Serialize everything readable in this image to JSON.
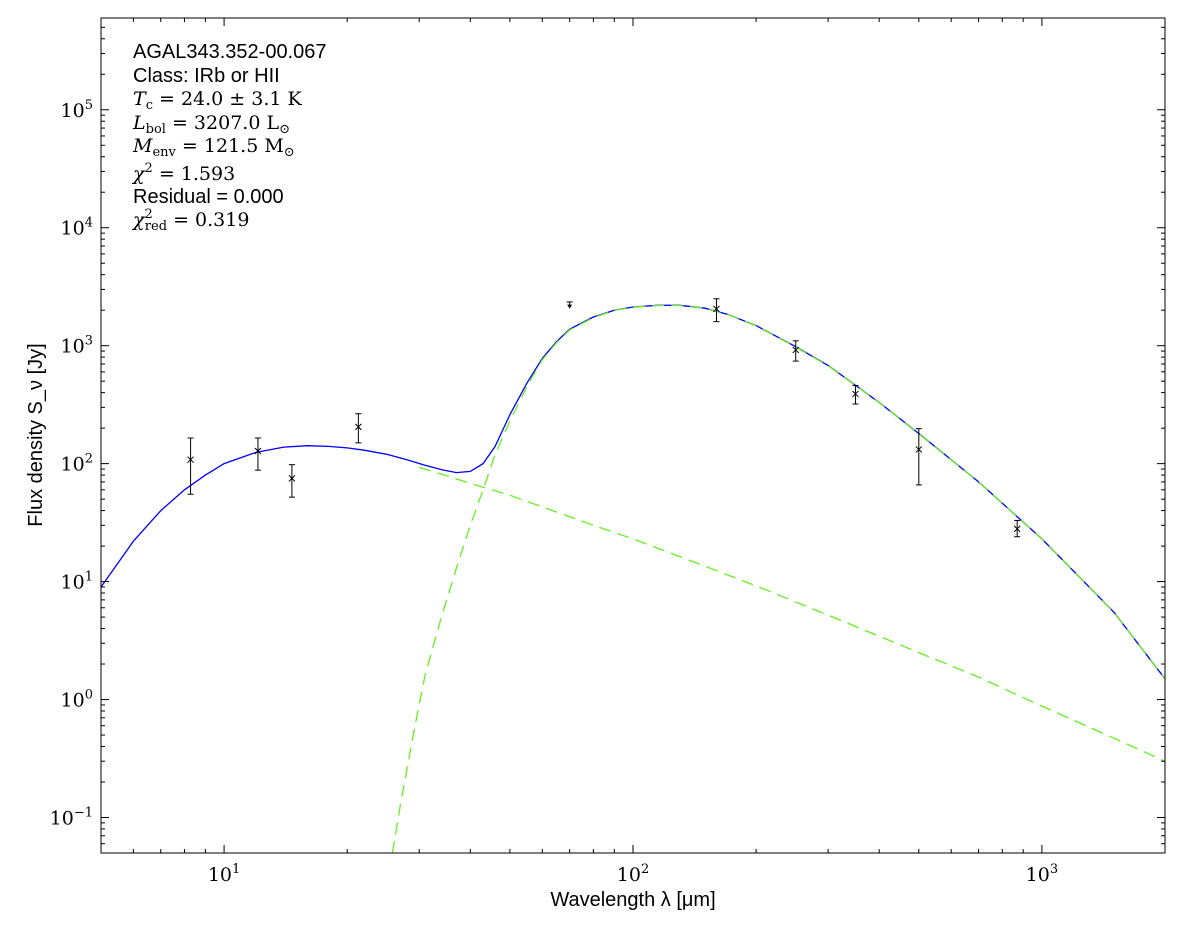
{
  "chart_data": {
    "type": "scatter",
    "title": "AGAL343.352-00.067",
    "xlabel": "Wavelength λ [μm]",
    "ylabel": "Flux density S_ν [Jy]",
    "xscale": "log",
    "yscale": "log",
    "xlim": [
      5,
      2000
    ],
    "ylim": [
      0.05,
      600000
    ],
    "grid": false,
    "x_ticks": [
      {
        "value": 10,
        "base": "10",
        "exp": "1"
      },
      {
        "value": 100,
        "base": "10",
        "exp": "2"
      },
      {
        "value": 1000,
        "base": "10",
        "exp": "3"
      }
    ],
    "y_ticks": [
      {
        "value": 0.1,
        "base": "10",
        "exp": "−1"
      },
      {
        "value": 1,
        "base": "10",
        "exp": "0"
      },
      {
        "value": 10,
        "base": "10",
        "exp": "1"
      },
      {
        "value": 100,
        "base": "10",
        "exp": "2"
      },
      {
        "value": 1000,
        "base": "10",
        "exp": "3"
      },
      {
        "value": 10000,
        "base": "10",
        "exp": "4"
      },
      {
        "value": 100000,
        "base": "10",
        "exp": "5"
      }
    ],
    "annotations": {
      "class": "Class: IRb or HII",
      "tc": {
        "sym": "T",
        "sub": "c",
        "text": " = 24.0 ± 3.1 K"
      },
      "lbol": {
        "sym": "L",
        "sub": "bol",
        "text": " = 3207.0 L",
        "tail": "⊙"
      },
      "menv": {
        "sym": "M",
        "sub": "env",
        "text": " = 121.5 M",
        "tail": "⊙"
      },
      "chi2": {
        "sym": "χ",
        "sup": "2",
        "text": " = 1.593"
      },
      "residual": "Residual = 0.000",
      "chi2red": {
        "sym": "χ",
        "sup": "2",
        "sub": "red",
        "text": " = 0.319"
      }
    },
    "photometry": [
      {
        "x": 8.28,
        "y": 108,
        "ylo": 55,
        "yhi": 165
      },
      {
        "x": 12.1,
        "y": 128,
        "ylo": 88,
        "yhi": 165
      },
      {
        "x": 14.65,
        "y": 75,
        "ylo": 52,
        "yhi": 98
      },
      {
        "x": 21.3,
        "y": 205,
        "ylo": 150,
        "yhi": 265
      },
      {
        "x": 160,
        "y": 2050,
        "ylo": 1600,
        "yhi": 2500
      },
      {
        "x": 250,
        "y": 920,
        "ylo": 740,
        "yhi": 1100
      },
      {
        "x": 350,
        "y": 390,
        "ylo": 320,
        "yhi": 460
      },
      {
        "x": 500,
        "y": 132,
        "ylo": 66,
        "yhi": 198
      },
      {
        "x": 870,
        "y": 28,
        "ylo": 24,
        "yhi": 33
      }
    ],
    "upper_limits": [
      {
        "x": 70,
        "y": 2100,
        "cap": 2350
      }
    ],
    "series": [
      {
        "kind": "total-fit",
        "color": "#0000ff",
        "style": "solid",
        "x": [
          5,
          6,
          7,
          8,
          9,
          10,
          12,
          14,
          16,
          18,
          20,
          22,
          25,
          28,
          31,
          34,
          37,
          40,
          43,
          46,
          50,
          55,
          60,
          65,
          70,
          80,
          90,
          100,
          115,
          130,
          150,
          170,
          200,
          250,
          300,
          400,
          500,
          700,
          1000,
          1500,
          2000
        ],
        "y": [
          9,
          22,
          40,
          60,
          80,
          100,
          125,
          138,
          142,
          140,
          136,
          130,
          120,
          108,
          97,
          89,
          84,
          86,
          100,
          140,
          260,
          480,
          780,
          1080,
          1380,
          1750,
          2000,
          2130,
          2200,
          2200,
          2080,
          1850,
          1480,
          980,
          680,
          330,
          180,
          70,
          23,
          5.5,
          1.5
        ]
      },
      {
        "kind": "warm-component",
        "color": "#66ee22",
        "style": "dashed",
        "x": [
          30,
          35,
          40,
          50,
          60,
          80,
          100,
          150,
          200,
          300,
          500,
          700,
          1000,
          1500,
          2000
        ],
        "y": [
          93,
          79,
          68,
          54,
          43,
          30,
          23,
          13.5,
          9.2,
          5.2,
          2.5,
          1.55,
          0.88,
          0.47,
          0.3
        ]
      },
      {
        "kind": "cold-component",
        "color": "#66ee22",
        "style": "dashed",
        "x": [
          25.8,
          27,
          29,
          31,
          34,
          37,
          40,
          43,
          46,
          50,
          55,
          60,
          65,
          70,
          80,
          90,
          100,
          115,
          130,
          150,
          170,
          200,
          250,
          300,
          400,
          500,
          700,
          1000,
          1500,
          2000
        ],
        "y": [
          0.05,
          0.13,
          0.5,
          1.6,
          5,
          13,
          30,
          60,
          120,
          230,
          450,
          760,
          1060,
          1360,
          1730,
          1990,
          2120,
          2190,
          2190,
          2075,
          1845,
          1475,
          975,
          677,
          329,
          179,
          70,
          23,
          5.5,
          1.5
        ]
      }
    ]
  }
}
